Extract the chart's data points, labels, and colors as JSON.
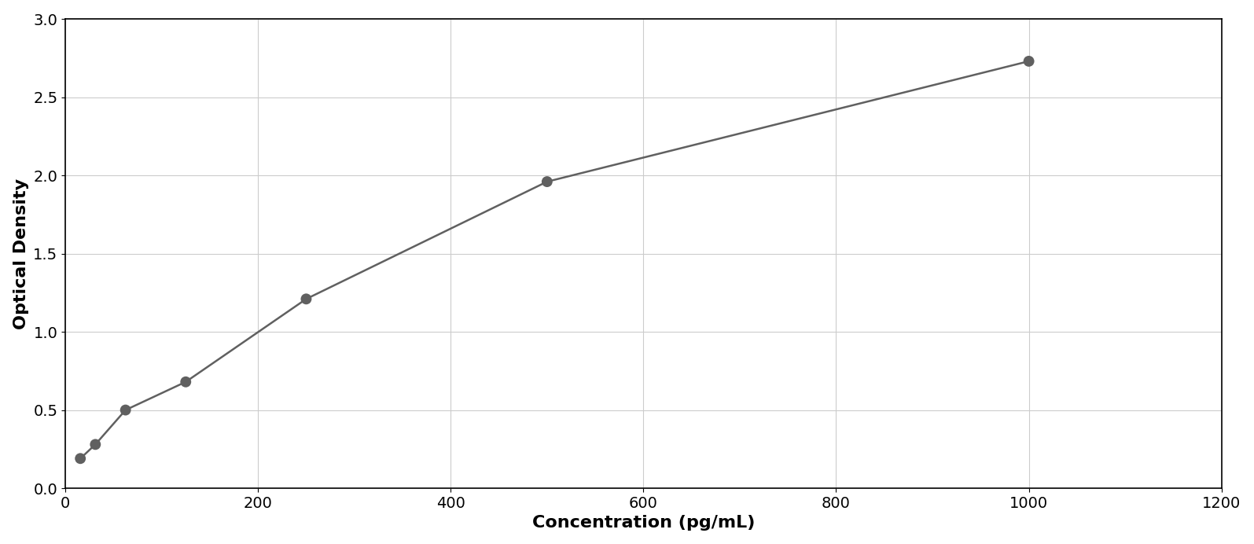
{
  "x_data": [
    15.6,
    31.2,
    62.5,
    125,
    250,
    500,
    1000
  ],
  "y_data": [
    0.19,
    0.28,
    0.5,
    0.68,
    1.21,
    1.96,
    2.73
  ],
  "point_color": "#606060",
  "line_color": "#606060",
  "marker_size": 10,
  "line_width": 1.8,
  "xlabel": "Concentration (pg/mL)",
  "ylabel": "Optical Density",
  "xlim": [
    0,
    1200
  ],
  "ylim": [
    0,
    3
  ],
  "xticks": [
    0,
    200,
    400,
    600,
    800,
    1000,
    1200
  ],
  "yticks": [
    0,
    0.5,
    1.0,
    1.5,
    2.0,
    2.5,
    3.0
  ],
  "grid_color": "#cccccc",
  "background_color": "#ffffff",
  "border_color": "#000000",
  "xlabel_fontsize": 16,
  "ylabel_fontsize": 16,
  "tick_fontsize": 14,
  "xlabel_fontweight": "bold",
  "ylabel_fontweight": "bold"
}
